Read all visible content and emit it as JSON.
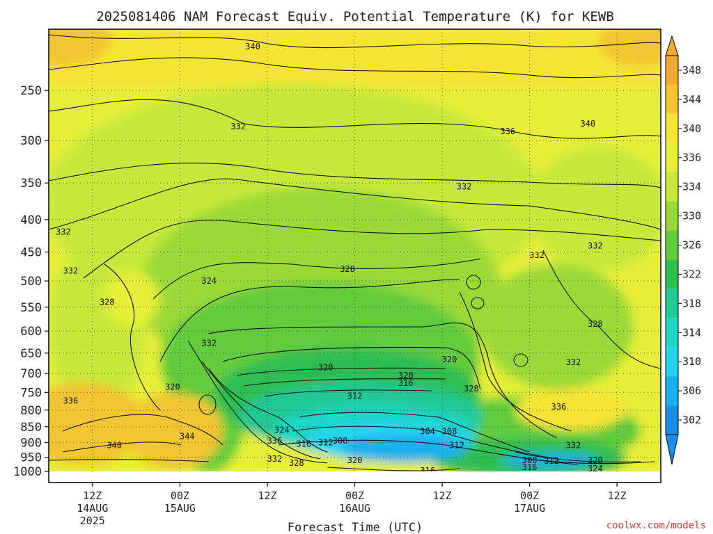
{
  "header": {
    "title": "2025081406 NAM Forecast Equiv. Potential Temperature (K) for KEWB"
  },
  "footer": {
    "credit": "coolwx.com/models"
  },
  "colors": {
    "ground": "#a0522d",
    "contour": "#111111",
    "grid": "#444444"
  },
  "chart_data": {
    "type": "heatmap",
    "title": "2025081406 NAM Forecast Equiv. Potential Temperature (K) for KEWB",
    "xlabel": "Forecast Time (UTC)",
    "ylabel": "",
    "y_scale": "log",
    "y_range": [
      1000,
      200
    ],
    "y_ticks": [
      250,
      300,
      350,
      400,
      450,
      500,
      550,
      600,
      650,
      700,
      750,
      800,
      850,
      900,
      950,
      1000
    ],
    "x_range": [
      "2025-08-14 06Z",
      "2025-08-17 18Z"
    ],
    "x_ticks": [
      {
        "t": "2025-08-14 12Z",
        "line1": "12Z",
        "line2": "14AUG",
        "line3": "2025"
      },
      {
        "t": "2025-08-15 00Z",
        "line1": "00Z",
        "line2": "15AUG",
        "line3": ""
      },
      {
        "t": "2025-08-15 12Z",
        "line1": "12Z",
        "line2": "",
        "line3": ""
      },
      {
        "t": "2025-08-16 00Z",
        "line1": "00Z",
        "line2": "16AUG",
        "line3": ""
      },
      {
        "t": "2025-08-16 12Z",
        "line1": "12Z",
        "line2": "",
        "line3": ""
      },
      {
        "t": "2025-08-17 00Z",
        "line1": "00Z",
        "line2": "17AUG",
        "line3": ""
      },
      {
        "t": "2025-08-17 12Z",
        "line1": "12Z",
        "line2": "",
        "line3": ""
      }
    ],
    "grid": true,
    "colorbar": {
      "labels": [
        348,
        344,
        340,
        336,
        334,
        330,
        326,
        322,
        318,
        314,
        310,
        306,
        302
      ],
      "colors": [
        "#f1a92f",
        "#f2c531",
        "#f6e436",
        "#e6ee38",
        "#c7e93a",
        "#9bd939",
        "#62cc3c",
        "#2ebe52",
        "#22c996",
        "#1ed6c6",
        "#26d4ee",
        "#1cb0ee",
        "#1c8ee8"
      ],
      "range": [
        302,
        348
      ]
    },
    "contour_labels": [
      {
        "t": "2025-08-15 10Z",
        "p": 213,
        "v": 340
      },
      {
        "t": "2025-08-15 08Z",
        "p": 285,
        "v": 332
      },
      {
        "t": "2025-08-16 21Z",
        "p": 290,
        "v": 336
      },
      {
        "t": "2025-08-17 08Z",
        "p": 282,
        "v": 340
      },
      {
        "t": "2025-08-16 15Z",
        "p": 355,
        "v": 332
      },
      {
        "t": "2025-08-14 08Z",
        "p": 418,
        "v": 332
      },
      {
        "t": "2025-08-17 09Z",
        "p": 440,
        "v": 332
      },
      {
        "t": "2025-08-17 01Z",
        "p": 455,
        "v": 332
      },
      {
        "t": "2025-08-15 23Z",
        "p": 479,
        "v": 328
      },
      {
        "t": "2025-08-14 09Z",
        "p": 482,
        "v": 332
      },
      {
        "t": "2025-08-15 04Z",
        "p": 500,
        "v": 324
      },
      {
        "t": "2025-08-14 14Z",
        "p": 540,
        "v": 328
      },
      {
        "t": "2025-08-17 09Z",
        "p": 585,
        "v": 328
      },
      {
        "t": "2025-08-15 04Z",
        "p": 627,
        "v": 332
      },
      {
        "t": "2025-08-16 13Z",
        "p": 665,
        "v": 320
      },
      {
        "t": "2025-08-17 06Z",
        "p": 672,
        "v": 332
      },
      {
        "t": "2025-08-15 20Z",
        "p": 685,
        "v": 320
      },
      {
        "t": "2025-08-16 07Z",
        "p": 705,
        "v": 320
      },
      {
        "t": "2025-08-16 07Z",
        "p": 725,
        "v": 316
      },
      {
        "t": "2025-08-14 23Z",
        "p": 735,
        "v": 320
      },
      {
        "t": "2025-08-16 16Z",
        "p": 740,
        "v": 328
      },
      {
        "t": "2025-08-16 00Z",
        "p": 760,
        "v": 312
      },
      {
        "t": "2025-08-14 09Z",
        "p": 773,
        "v": 336
      },
      {
        "t": "2025-08-17 04Z",
        "p": 790,
        "v": 336
      },
      {
        "t": "2025-08-15 14Z",
        "p": 860,
        "v": 324
      },
      {
        "t": "2025-08-16 10Z",
        "p": 865,
        "v": 304
      },
      {
        "t": "2025-08-16 13Z",
        "p": 865,
        "v": 308
      },
      {
        "t": "2025-08-15 01Z",
        "p": 880,
        "v": 344
      },
      {
        "t": "2025-08-15 13Z",
        "p": 895,
        "v": 336
      },
      {
        "t": "2025-08-15 22Z",
        "p": 895,
        "v": 308
      },
      {
        "t": "2025-08-15 20Z",
        "p": 900,
        "v": 312
      },
      {
        "t": "2025-08-15 17Z",
        "p": 905,
        "v": 316
      },
      {
        "t": "2025-08-14 15Z",
        "p": 910,
        "v": 340
      },
      {
        "t": "2025-08-16 14Z",
        "p": 910,
        "v": 312
      },
      {
        "t": "2025-08-17 06Z",
        "p": 910,
        "v": 332
      },
      {
        "t": "2025-08-15 13Z",
        "p": 955,
        "v": 332
      },
      {
        "t": "2025-08-16 00Z",
        "p": 960,
        "v": 320
      },
      {
        "t": "2025-08-17 00Z",
        "p": 960,
        "v": 308
      },
      {
        "t": "2025-08-17 03Z",
        "p": 963,
        "v": 312
      },
      {
        "t": "2025-08-17 09Z",
        "p": 960,
        "v": 320
      },
      {
        "t": "2025-08-15 16Z",
        "p": 970,
        "v": 328
      },
      {
        "t": "2025-08-17 00Z",
        "p": 985,
        "v": 316
      },
      {
        "t": "2025-08-17 09Z",
        "p": 990,
        "v": 324
      },
      {
        "t": "2025-08-16 10Z",
        "p": 997,
        "v": 316
      }
    ]
  }
}
